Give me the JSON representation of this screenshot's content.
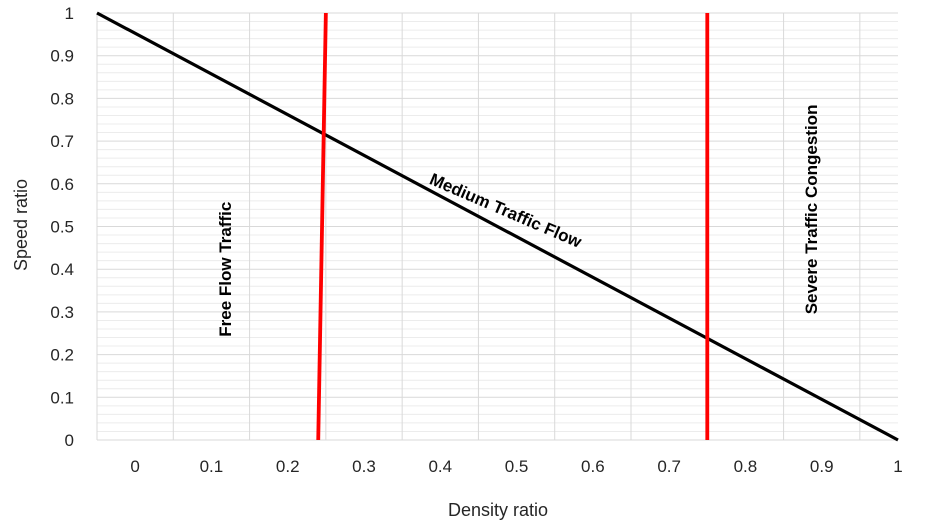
{
  "chart_data": {
    "type": "line",
    "xlabel": "Density ratio",
    "ylabel": "Speed ratio",
    "x_ticks": [
      "0",
      "0.1",
      "0.2",
      "0.3",
      "0.4",
      "0.5",
      "0.6",
      "0.7",
      "0.8",
      "0.9",
      "1"
    ],
    "y_ticks": [
      "0",
      "0.1",
      "0.2",
      "0.3",
      "0.4",
      "0.5",
      "0.6",
      "0.7",
      "0.8",
      "0.9",
      "1"
    ],
    "xlim": [
      -0.05,
      1.0
    ],
    "ylim": [
      0,
      1.0
    ],
    "grid": true,
    "series": [
      {
        "x": [
          -0.05,
          1.0
        ],
        "y": [
          1.0,
          0.0
        ],
        "color": "#000000"
      },
      {
        "x": [
          0.24,
          0.25
        ],
        "y": [
          0.0,
          1.0
        ],
        "color": "#ff0000"
      },
      {
        "x": [
          0.75,
          0.75
        ],
        "y": [
          0.0,
          1.0
        ],
        "color": "#ff0000"
      }
    ],
    "annotations": [
      {
        "text": "Free Flow Traffic",
        "x": 0.12,
        "y": 0.4,
        "rotation": -90
      },
      {
        "text": "Medium Traffic Flow",
        "x": 0.485,
        "y": 0.535,
        "rotation": 23.3
      },
      {
        "text": "Severe Traffic Congestion",
        "x": 0.888,
        "y": 0.54,
        "rotation": -90
      }
    ]
  }
}
